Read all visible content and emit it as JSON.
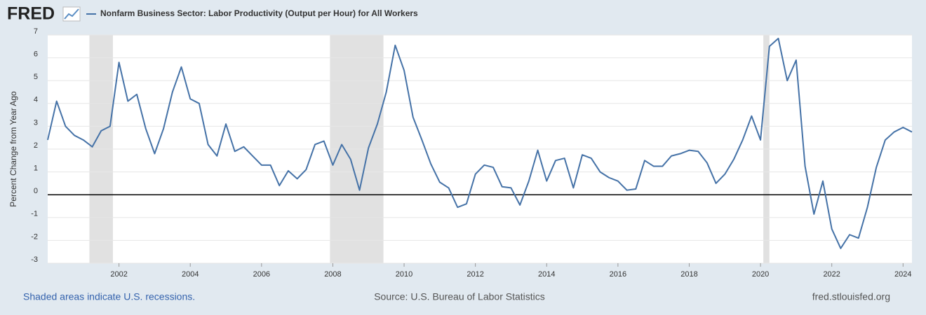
{
  "chart_data": {
    "type": "line",
    "logo": "FRED",
    "ylabel": "Percent Change from Year Ago",
    "footer_left": "Shaded areas indicate U.S. recessions.",
    "source": "Source: U.S. Bureau of Labor Statistics",
    "site": "fred.stlouisfed.org",
    "xlim": [
      2000,
      2024.25
    ],
    "xticks": [
      2002,
      2004,
      2006,
      2008,
      2010,
      2012,
      2014,
      2016,
      2018,
      2020,
      2022,
      2024
    ],
    "ylim": [
      -3,
      7
    ],
    "yticks": [
      -3,
      -2,
      -1,
      0,
      1,
      2,
      3,
      4,
      5,
      6,
      7
    ],
    "grid": "y",
    "baseline": 0,
    "recessions": [
      [
        2001.17,
        2001.83
      ],
      [
        2007.92,
        2009.42
      ],
      [
        2020.08,
        2020.25
      ]
    ],
    "recession_color": "#e1e1e1",
    "x": [
      2000,
      2000.25,
      2000.5,
      2000.75,
      2001,
      2001.25,
      2001.5,
      2001.75,
      2002,
      2002.25,
      2002.5,
      2002.75,
      2003,
      2003.25,
      2003.5,
      2003.75,
      2004,
      2004.25,
      2004.5,
      2004.75,
      2005,
      2005.25,
      2005.5,
      2005.75,
      2006,
      2006.25,
      2006.5,
      2006.75,
      2007,
      2007.25,
      2007.5,
      2007.75,
      2008,
      2008.25,
      2008.5,
      2008.75,
      2009,
      2009.25,
      2009.5,
      2009.75,
      2010,
      2010.25,
      2010.5,
      2010.75,
      2011,
      2011.25,
      2011.5,
      2011.75,
      2012,
      2012.25,
      2012.5,
      2012.75,
      2013,
      2013.25,
      2013.5,
      2013.75,
      2014,
      2014.25,
      2014.5,
      2014.75,
      2015,
      2015.25,
      2015.5,
      2015.75,
      2016,
      2016.25,
      2016.5,
      2016.75,
      2017,
      2017.25,
      2017.5,
      2017.75,
      2018,
      2018.25,
      2018.5,
      2018.75,
      2019,
      2019.25,
      2019.5,
      2019.75,
      2020,
      2020.25,
      2020.5,
      2020.75,
      2021,
      2021.25,
      2021.5,
      2021.75,
      2022,
      2022.25,
      2022.5,
      2022.75,
      2023,
      2023.25,
      2023.5,
      2023.75,
      2024,
      2024.25
    ],
    "series": [
      {
        "name": "Nonfarm Business Sector: Labor Productivity (Output per Hour) for All Workers",
        "color": "#4572a7",
        "values": [
          2.4,
          4.1,
          3.0,
          2.6,
          2.4,
          2.1,
          2.8,
          3.0,
          5.8,
          4.1,
          4.4,
          2.9,
          1.8,
          2.9,
          4.5,
          5.6,
          4.2,
          4.0,
          2.2,
          1.7,
          3.1,
          1.9,
          2.1,
          1.7,
          1.3,
          1.3,
          0.4,
          1.05,
          0.7,
          1.1,
          2.2,
          2.35,
          1.3,
          2.2,
          1.55,
          0.2,
          2.05,
          3.1,
          4.5,
          6.55,
          5.45,
          3.4,
          2.4,
          1.35,
          0.55,
          0.3,
          -0.55,
          -0.4,
          0.9,
          1.3,
          1.2,
          0.35,
          0.3,
          -0.45,
          0.6,
          1.95,
          0.6,
          1.5,
          1.6,
          0.3,
          1.75,
          1.6,
          1.0,
          0.75,
          0.6,
          0.2,
          0.25,
          1.5,
          1.25,
          1.25,
          1.7,
          1.8,
          1.95,
          1.9,
          1.4,
          0.5,
          0.9,
          1.55,
          2.4,
          3.45,
          2.4,
          6.5,
          6.85,
          5.0,
          5.9,
          1.25,
          -0.85,
          0.6,
          -1.5,
          -2.35,
          -1.75,
          -1.9,
          -0.55,
          1.2,
          2.4,
          2.75,
          2.95,
          2.75
        ]
      }
    ]
  }
}
